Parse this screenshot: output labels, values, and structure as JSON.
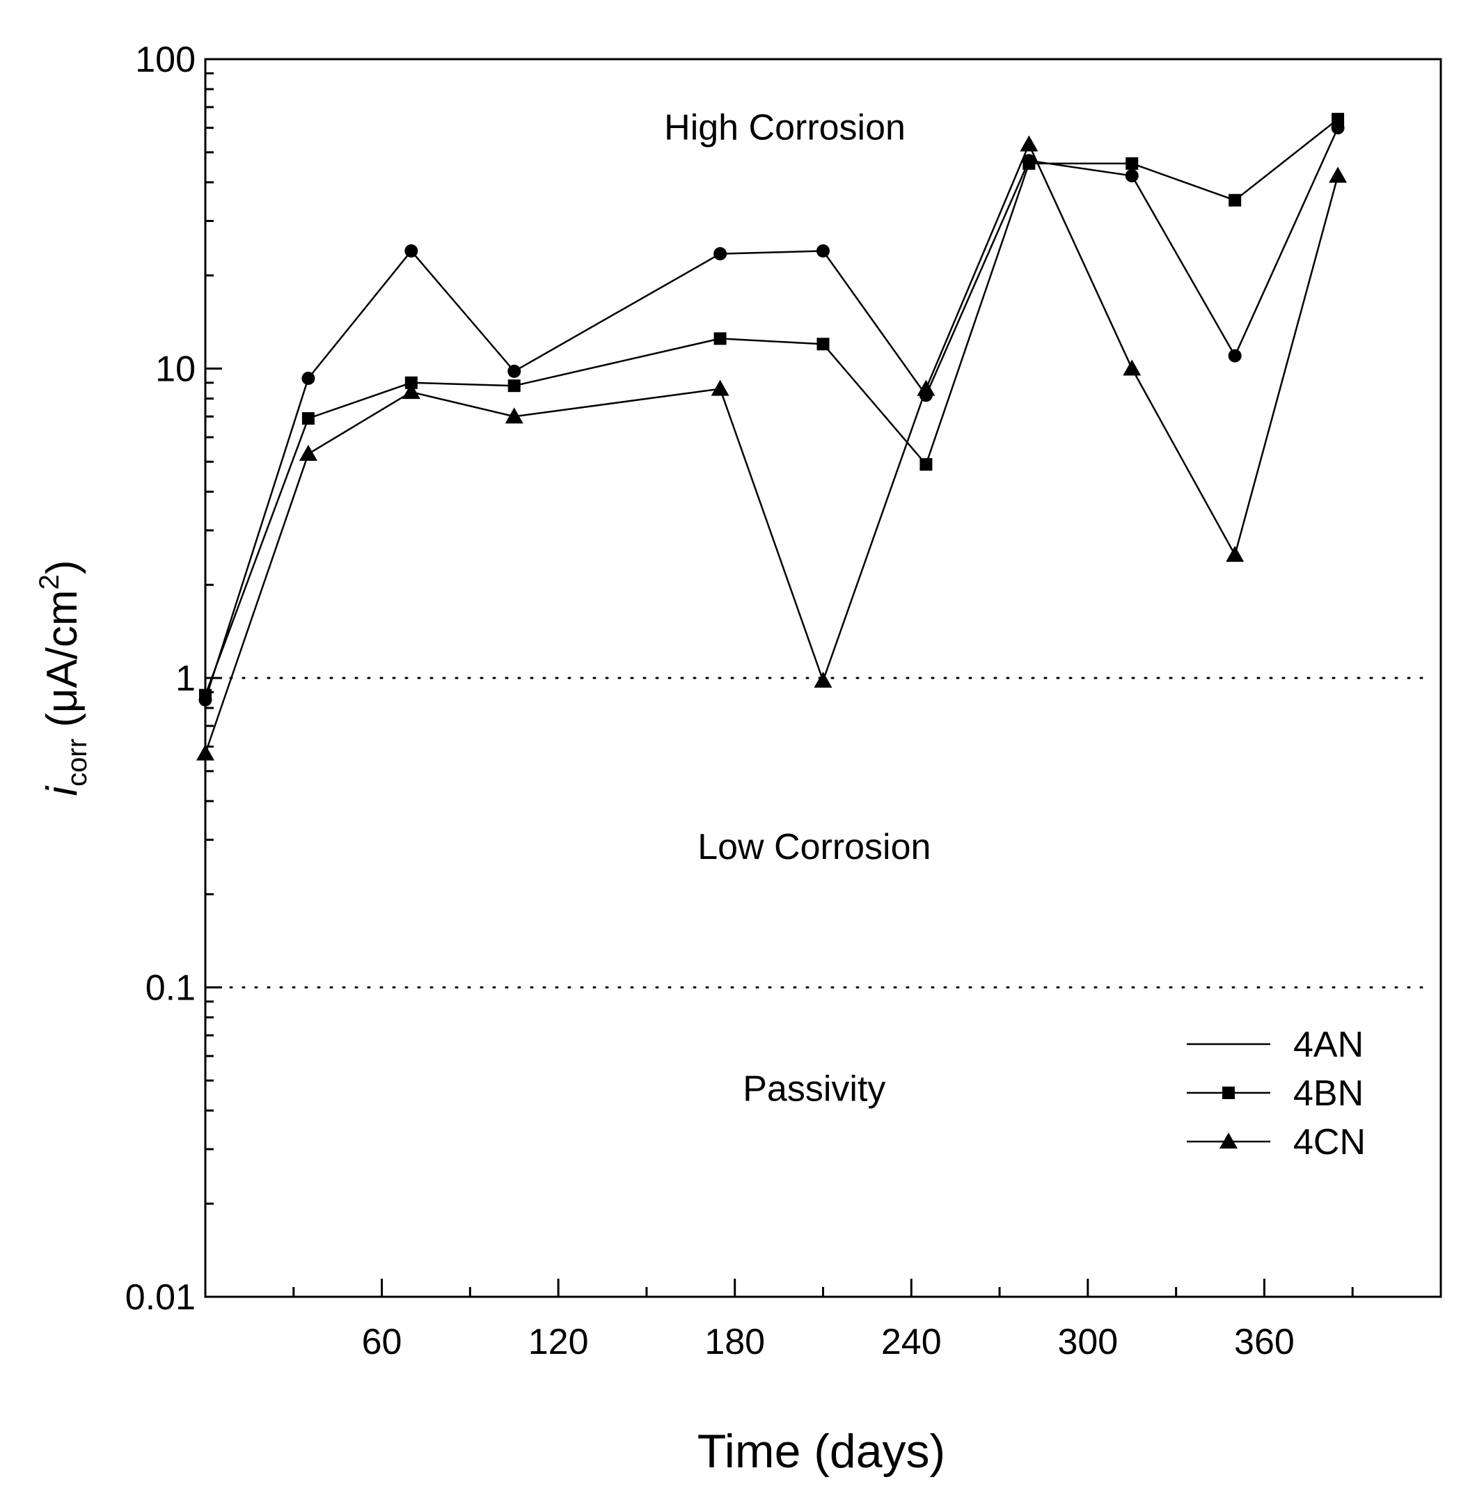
{
  "chart_data": {
    "type": "line",
    "title": "",
    "xlabel": "Time (days)",
    "ylabel": {
      "symbol": "i",
      "subscript": "corr",
      "units_pre": "(μA/cm",
      "units_sup": "2",
      "units_post": ")"
    },
    "xlim": [
      0,
      420
    ],
    "ylim": [
      0.01,
      100
    ],
    "yscale": "log",
    "x_ticks": [
      60,
      120,
      180,
      240,
      300,
      360
    ],
    "x_tick_labels": [
      "60",
      "120",
      "180",
      "240",
      "300",
      "360"
    ],
    "y_ticks": [
      0.01,
      0.1,
      1,
      10,
      100
    ],
    "y_tick_labels": [
      "0.01",
      "0.1",
      "1",
      "10",
      "100"
    ],
    "thresholds": [
      1,
      0.1
    ],
    "regions": [
      {
        "label": "High Corrosion",
        "x": 197,
        "y": 55
      },
      {
        "label": "Low Corrosion",
        "x": 207,
        "y": 0.26
      },
      {
        "label": "Passivity",
        "x": 207,
        "y": 0.043
      }
    ],
    "series": [
      {
        "name": "4AN",
        "marker": "circle",
        "x": [
          0,
          35,
          70,
          105,
          175,
          210,
          245,
          280,
          315,
          350,
          385
        ],
        "values": [
          0.85,
          9.3,
          24,
          9.8,
          23.5,
          24,
          8.2,
          47,
          42,
          11,
          60
        ]
      },
      {
        "name": "4BN",
        "marker": "square",
        "x": [
          0,
          35,
          70,
          105,
          175,
          210,
          245,
          280,
          315,
          350,
          385
        ],
        "values": [
          0.88,
          6.9,
          9,
          8.8,
          12.5,
          12,
          4.9,
          46,
          46,
          35,
          64
        ]
      },
      {
        "name": "4CN",
        "marker": "triangle",
        "x": [
          0,
          35,
          70,
          105,
          175,
          210,
          245,
          280,
          315,
          350,
          385
        ],
        "values": [
          0.57,
          5.3,
          8.4,
          7,
          8.6,
          0.98,
          8.6,
          53,
          10,
          2.5,
          42
        ]
      }
    ],
    "legend": {
      "position": "bottom-right",
      "entries": [
        "4AN",
        "4BN",
        "4CN"
      ]
    }
  }
}
